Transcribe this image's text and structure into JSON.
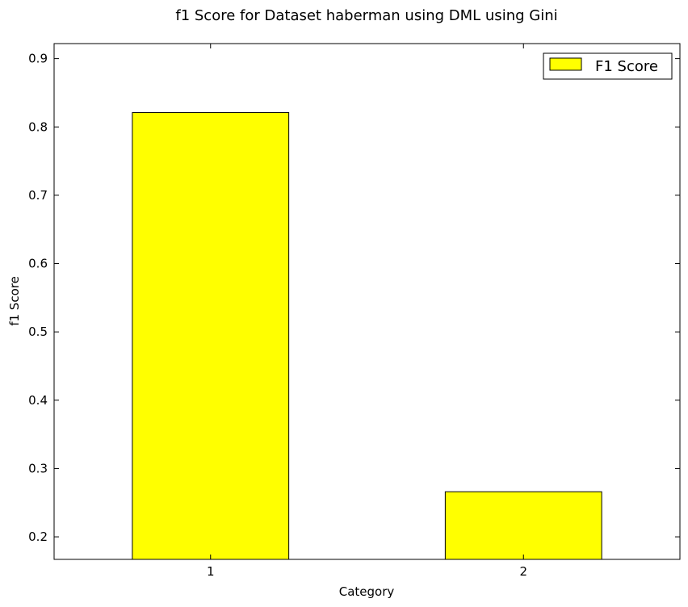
{
  "chart_data": {
    "type": "bar",
    "title": "f1 Score for Dataset haberman using DML using Gini",
    "xlabel": "Category",
    "ylabel": "f1 Score",
    "categories": [
      "1",
      "2"
    ],
    "series": [
      {
        "name": "F1 Score",
        "values": [
          0.821,
          0.266
        ],
        "color": "#ffff00"
      }
    ],
    "ylim": [
      0.167,
      0.922
    ],
    "yticks": [
      0.2,
      0.3,
      0.4,
      0.5,
      0.6,
      0.7,
      0.8,
      0.9
    ],
    "grid": false,
    "legend_position": "top-right"
  }
}
